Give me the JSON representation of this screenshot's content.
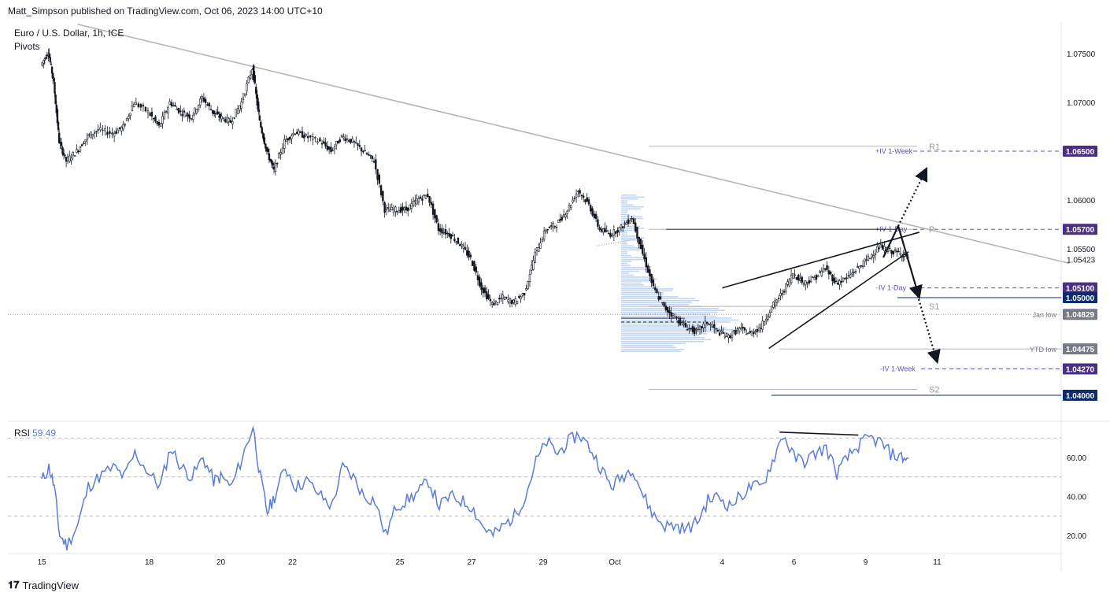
{
  "header": {
    "published_by": "Matt_Simpson published on TradingView.com, Oct 06, 2023 14:00 UTC+10"
  },
  "footer": {
    "brand": "TradingView"
  },
  "chart_data": [
    {
      "type": "candlestick",
      "title": "Euro / U.S. Dollar, 1h, ICE",
      "indicator": "Pivots",
      "ylim": [
        1.0375,
        1.0775
      ],
      "y_ticks": [
        "1.07500",
        "1.07000",
        "1.06000",
        "1.05500"
      ],
      "x_ticks": [
        "15",
        "18",
        "20",
        "22",
        "25",
        "27",
        "29",
        "Oct",
        "4",
        "6",
        "9",
        "11"
      ],
      "x_tick_index": [
        0,
        3,
        5,
        7,
        10,
        12,
        14,
        16,
        19,
        21,
        23,
        25
      ],
      "last_price": "1.05423",
      "price_path": [
        [
          0,
          1.0738
        ],
        [
          0.2,
          1.0752
        ],
        [
          0.35,
          1.072
        ],
        [
          0.5,
          1.066
        ],
        [
          0.7,
          1.064
        ],
        [
          1.0,
          1.065
        ],
        [
          1.3,
          1.0665
        ],
        [
          1.6,
          1.0672
        ],
        [
          2.0,
          1.0668
        ],
        [
          2.3,
          1.0675
        ],
        [
          2.6,
          1.07
        ],
        [
          3.0,
          1.069
        ],
        [
          3.3,
          1.0675
        ],
        [
          3.6,
          1.07
        ],
        [
          3.9,
          1.069
        ],
        [
          4.2,
          1.0685
        ],
        [
          4.5,
          1.0705
        ],
        [
          4.8,
          1.069
        ],
        [
          5.0,
          1.0685
        ],
        [
          5.3,
          1.068
        ],
        [
          5.6,
          1.07
        ],
        [
          5.9,
          1.0735
        ],
        [
          6.1,
          1.068
        ],
        [
          6.3,
          1.065
        ],
        [
          6.5,
          1.063
        ],
        [
          6.8,
          1.066
        ],
        [
          7.1,
          1.067
        ],
        [
          7.4,
          1.0665
        ],
        [
          7.8,
          1.066
        ],
        [
          8.1,
          1.065
        ],
        [
          8.4,
          1.0665
        ],
        [
          8.7,
          1.066
        ],
        [
          9.0,
          1.065
        ],
        [
          9.3,
          1.064
        ],
        [
          9.6,
          1.059
        ],
        [
          9.9,
          1.059
        ],
        [
          10.2,
          1.059
        ],
        [
          10.5,
          1.06
        ],
        [
          10.8,
          1.0605
        ],
        [
          11.1,
          1.057
        ],
        [
          11.4,
          1.0565
        ],
        [
          11.7,
          1.0555
        ],
        [
          12.0,
          1.054
        ],
        [
          12.3,
          1.051
        ],
        [
          12.6,
          1.0493
        ],
        [
          12.9,
          1.05
        ],
        [
          13.2,
          1.0495
        ],
        [
          13.5,
          1.0505
        ],
        [
          13.8,
          1.0545
        ],
        [
          14.1,
          1.057
        ],
        [
          14.4,
          1.0575
        ],
        [
          14.7,
          1.059
        ],
        [
          15.0,
          1.061
        ],
        [
          15.3,
          1.0595
        ],
        [
          15.6,
          1.057
        ],
        [
          15.9,
          1.0565
        ],
        [
          16.2,
          1.0572
        ],
        [
          16.5,
          1.0582
        ],
        [
          16.8,
          1.0545
        ],
        [
          17.1,
          1.051
        ],
        [
          17.4,
          1.049
        ],
        [
          17.7,
          1.048
        ],
        [
          18.0,
          1.047
        ],
        [
          18.3,
          1.0465
        ],
        [
          18.6,
          1.0475
        ],
        [
          18.9,
          1.0465
        ],
        [
          19.2,
          1.046
        ],
        [
          19.5,
          1.0468
        ],
        [
          19.8,
          1.0463
        ],
        [
          20.1,
          1.047
        ],
        [
          20.4,
          1.049
        ],
        [
          20.7,
          1.0505
        ],
        [
          21.0,
          1.0525
        ],
        [
          21.3,
          1.0515
        ],
        [
          21.6,
          1.052
        ],
        [
          21.9,
          1.053
        ],
        [
          22.2,
          1.0515
        ],
        [
          22.5,
          1.052
        ],
        [
          22.8,
          1.053
        ],
        [
          23.1,
          1.054
        ],
        [
          23.4,
          1.0552
        ],
        [
          23.7,
          1.0548
        ],
        [
          24.0,
          1.0545
        ],
        [
          24.2,
          1.0542
        ]
      ],
      "trendline": {
        "from": [
          1.0,
          1.078
        ],
        "to": [
          28.7,
          1.0535
        ]
      },
      "wedge_upper": {
        "from": [
          19.0,
          1.051
        ],
        "to": [
          24.5,
          1.0567
        ]
      },
      "wedge_lower": {
        "from": [
          20.3,
          1.0448
        ],
        "to": [
          24.2,
          1.0547
        ]
      },
      "previous_range_line": {
        "from": [
          15.5,
          1.0553
        ],
        "to": [
          16.6,
          1.056
        ]
      },
      "jan_low_line": 1.04829,
      "pivot_levels": [
        {
          "label": "R1",
          "value": 1.0655
        },
        {
          "label": "P",
          "value": 1.057
        },
        {
          "label": "S1",
          "value": 1.0491
        },
        {
          "label": "S2",
          "value": 1.0406
        }
      ],
      "iv_levels": [
        {
          "label": "+IV 1-Week",
          "value": 1.065
        },
        {
          "label": "+IV 1-Day",
          "value": 1.057
        },
        {
          "label": "-IV 1-Day",
          "value": 1.051
        },
        {
          "label": "-IV 1-Week",
          "value": 1.0427
        }
      ],
      "right_labels": [
        {
          "text": "1.06500",
          "value": 1.065,
          "color": "#4a2f85"
        },
        {
          "text": "1.05700",
          "value": 1.057,
          "color": "#4a2f85"
        },
        {
          "text": "1.05100",
          "value": 1.051,
          "color": "#4a2f85"
        },
        {
          "text": "1.05000",
          "value": 1.05,
          "color": "#0d2c6b"
        },
        {
          "text": "1.04829",
          "value": 1.04829,
          "color": "#787b86"
        },
        {
          "text": "1.04475",
          "value": 1.04475,
          "color": "#787b86"
        },
        {
          "text": "1.04270",
          "value": 1.0427,
          "color": "#4a2f85"
        },
        {
          "text": "1.04000",
          "value": 1.04,
          "color": "#0d2c6b"
        }
      ],
      "level_notes": [
        {
          "text": "Jan low",
          "value": 1.04829
        },
        {
          "text": "YTD low",
          "value": 1.04475
        }
      ],
      "volume_profile": {
        "price_range": [
          1.0445,
          1.0605
        ],
        "poc": 1.0475
      }
    },
    {
      "type": "line",
      "title": "RSI",
      "current_value": "59.49",
      "ylim": [
        10,
        80
      ],
      "y_ticks": [
        "60.00",
        "40.00",
        "20.00"
      ],
      "bands": [
        30,
        50,
        70
      ],
      "line_color": "#5b7bd5",
      "rsi_path": [
        [
          0,
          48
        ],
        [
          0.2,
          55
        ],
        [
          0.35,
          45
        ],
        [
          0.5,
          20
        ],
        [
          0.7,
          15
        ],
        [
          1.0,
          25
        ],
        [
          1.3,
          45
        ],
        [
          1.6,
          50
        ],
        [
          2.0,
          55
        ],
        [
          2.3,
          50
        ],
        [
          2.6,
          62
        ],
        [
          3.0,
          52
        ],
        [
          3.3,
          45
        ],
        [
          3.6,
          65
        ],
        [
          3.9,
          55
        ],
        [
          4.2,
          50
        ],
        [
          4.5,
          60
        ],
        [
          4.8,
          48
        ],
        [
          5.0,
          50
        ],
        [
          5.3,
          45
        ],
        [
          5.6,
          60
        ],
        [
          5.9,
          76
        ],
        [
          6.1,
          50
        ],
        [
          6.3,
          32
        ],
        [
          6.5,
          40
        ],
        [
          6.8,
          55
        ],
        [
          7.1,
          45
        ],
        [
          7.4,
          48
        ],
        [
          7.8,
          40
        ],
        [
          8.1,
          35
        ],
        [
          8.4,
          55
        ],
        [
          8.7,
          50
        ],
        [
          9.0,
          40
        ],
        [
          9.3,
          38
        ],
        [
          9.6,
          20
        ],
        [
          9.9,
          35
        ],
        [
          10.2,
          38
        ],
        [
          10.5,
          42
        ],
        [
          10.8,
          48
        ],
        [
          11.1,
          35
        ],
        [
          11.4,
          40
        ],
        [
          11.7,
          38
        ],
        [
          12.0,
          35
        ],
        [
          12.3,
          25
        ],
        [
          12.6,
          20
        ],
        [
          12.9,
          25
        ],
        [
          13.2,
          30
        ],
        [
          13.5,
          40
        ],
        [
          13.8,
          58
        ],
        [
          14.1,
          68
        ],
        [
          14.4,
          62
        ],
        [
          14.7,
          68
        ],
        [
          15.0,
          72
        ],
        [
          15.3,
          65
        ],
        [
          15.6,
          55
        ],
        [
          15.9,
          45
        ],
        [
          16.2,
          50
        ],
        [
          16.5,
          55
        ],
        [
          16.8,
          40
        ],
        [
          17.1,
          30
        ],
        [
          17.4,
          25
        ],
        [
          17.7,
          25
        ],
        [
          18.0,
          23
        ],
        [
          18.3,
          27
        ],
        [
          18.6,
          38
        ],
        [
          18.9,
          40
        ],
        [
          19.2,
          35
        ],
        [
          19.5,
          40
        ],
        [
          19.8,
          45
        ],
        [
          20.1,
          45
        ],
        [
          20.4,
          58
        ],
        [
          20.7,
          72
        ],
        [
          21.0,
          60
        ],
        [
          21.3,
          58
        ],
        [
          21.6,
          62
        ],
        [
          21.9,
          65
        ],
        [
          22.2,
          52
        ],
        [
          22.5,
          60
        ],
        [
          22.8,
          66
        ],
        [
          23.1,
          70
        ],
        [
          23.4,
          68
        ],
        [
          23.7,
          62
        ],
        [
          24.0,
          60
        ],
        [
          24.2,
          59.49
        ]
      ],
      "divergence_line": {
        "from": [
          20.6,
          73
        ],
        "to": [
          22.8,
          71.5
        ]
      }
    }
  ],
  "colors": {
    "candle": "#131722",
    "trendline": "#b2b5be",
    "pivot": "#b2b5be",
    "iv": "#6a4fb5",
    "level_blue": "#0d2c6b",
    "volume_profile": "#b7cff0",
    "rsi": "#5b7bd5",
    "grid_axis": "#787b86"
  }
}
